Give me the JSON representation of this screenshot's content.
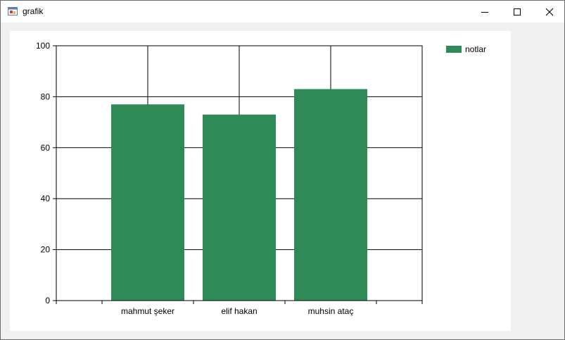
{
  "window": {
    "title": "grafik"
  },
  "icons": {
    "app": "app-window-icon",
    "minimize": "minimize-icon",
    "maximize": "maximize-icon",
    "close": "close-icon"
  },
  "colors": {
    "bar": "#2e8b57"
  },
  "chart_data": {
    "type": "bar",
    "categories": [
      "mahmut şeker",
      "elif hakan",
      "muhsin ataç"
    ],
    "series": [
      {
        "name": "notlar",
        "values": [
          77,
          73,
          83
        ]
      }
    ],
    "yticks": [
      "0",
      "20",
      "40",
      "60",
      "80",
      "100"
    ],
    "ylim": [
      0,
      100
    ],
    "grid": true,
    "legend": "top-right"
  }
}
